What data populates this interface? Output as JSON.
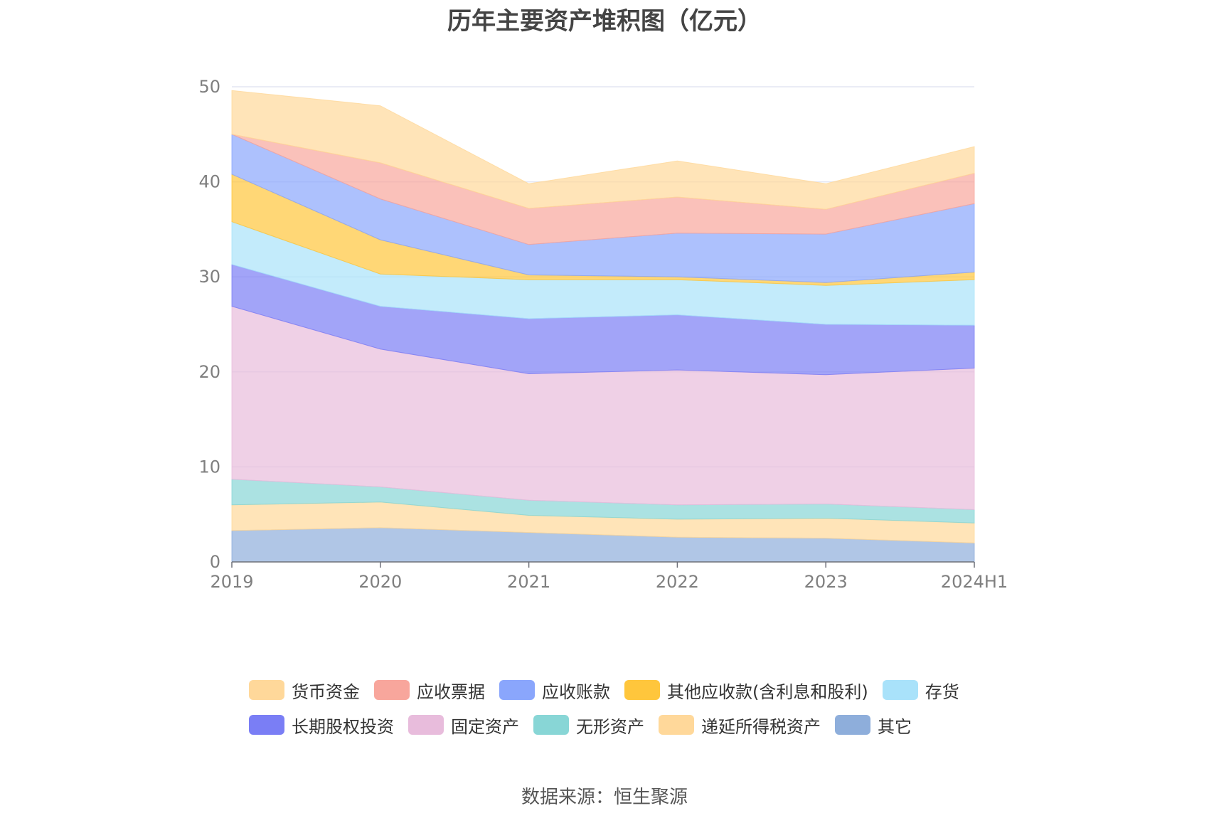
{
  "title": "历年主要资产堆积图（亿元）",
  "source": "数据来源：恒生聚源",
  "legend_rows": [
    [
      0,
      1,
      2,
      3,
      4
    ],
    [
      5,
      6,
      7,
      8,
      9
    ]
  ],
  "chart_data": {
    "type": "area",
    "stacked": true,
    "title": "历年主要资产堆积图（亿元）",
    "categories": [
      "2019",
      "2020",
      "2021",
      "2022",
      "2023",
      "2024H1"
    ],
    "ylim": [
      0,
      50
    ],
    "yticks": [
      0,
      10,
      20,
      30,
      40,
      50
    ],
    "grid": true,
    "legend_position": "bottom",
    "series": [
      {
        "name": "其它",
        "color": "#8eaedb",
        "values": [
          3.3,
          3.6,
          3.1,
          2.6,
          2.5,
          2.0
        ]
      },
      {
        "name": "递延所得税资产",
        "color": "#ffd89a",
        "values": [
          2.7,
          2.7,
          1.8,
          1.9,
          2.1,
          2.1
        ]
      },
      {
        "name": "无形资产",
        "color": "#88d6d6",
        "values": [
          2.7,
          1.6,
          1.6,
          1.5,
          1.5,
          1.4
        ]
      },
      {
        "name": "固定资产",
        "color": "#e8bcdc",
        "values": [
          18.2,
          14.5,
          13.3,
          14.2,
          13.6,
          14.9
        ]
      },
      {
        "name": "长期股权投资",
        "color": "#7a7ef5",
        "values": [
          4.4,
          4.5,
          5.8,
          5.8,
          5.3,
          4.5
        ]
      },
      {
        "name": "存货",
        "color": "#a9e2fa",
        "values": [
          4.5,
          3.4,
          4.1,
          3.7,
          4.1,
          4.8
        ]
      },
      {
        "name": "其他应收款(含利息和股利)",
        "color": "#ffc63c",
        "values": [
          5.0,
          3.6,
          0.5,
          0.3,
          0.3,
          0.8
        ]
      },
      {
        "name": "应收账款",
        "color": "#8aa6fc",
        "values": [
          4.2,
          4.3,
          3.2,
          4.6,
          5.1,
          7.2
        ]
      },
      {
        "name": "应收票据",
        "color": "#f8a69c",
        "values": [
          0.0,
          3.8,
          3.8,
          3.8,
          2.6,
          3.2
        ]
      },
      {
        "name": "货币资金",
        "color": "#ffd89a",
        "values": [
          4.6,
          6.0,
          2.6,
          3.8,
          2.7,
          2.8
        ]
      }
    ]
  },
  "legend_order": [
    "货币资金",
    "应收票据",
    "应收账款",
    "其他应收款(含利息和股利)",
    "存货",
    "长期股权投资",
    "固定资产",
    "无形资产",
    "递延所得税资产",
    "其它"
  ]
}
